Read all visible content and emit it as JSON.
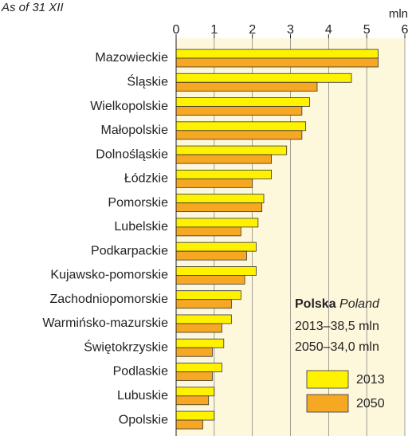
{
  "chart_data": {
    "type": "barh",
    "subtitle": "As of 31 XII",
    "x_label": "mln",
    "categories": [
      "Mazowieckie",
      "Śląskie",
      "Wielkopolskie",
      "Małopolskie",
      "Dolnośląskie",
      "Łódzkie",
      "Pomorskie",
      "Lubelskie",
      "Podkarpackie",
      "Kujawsko-pomorskie",
      "Zachodniopomorskie",
      "Warmińsko-mazurskie",
      "Świętokrzyskie",
      "Podlaskie",
      "Lubuskie",
      "Opolskie"
    ],
    "series": [
      {
        "name": "2013",
        "color": "#fff200",
        "values": [
          5.3,
          4.6,
          3.5,
          3.4,
          2.9,
          2.5,
          2.3,
          2.15,
          2.1,
          2.1,
          1.7,
          1.45,
          1.25,
          1.2,
          1.0,
          1.0
        ]
      },
      {
        "name": "2050",
        "color": "#f7a823",
        "values": [
          5.3,
          3.7,
          3.3,
          3.3,
          2.5,
          2.0,
          2.25,
          1.7,
          1.85,
          1.8,
          1.45,
          1.2,
          0.95,
          0.95,
          0.85,
          0.7
        ]
      }
    ],
    "xlim": [
      0,
      6
    ],
    "xticks": [
      0,
      1,
      2,
      3,
      4,
      5,
      6
    ],
    "grid": true,
    "legend_title": "Polska",
    "legend_title_translation": "Poland",
    "annotations": [
      "2013–38,5 mln",
      "2050–34,0 mln"
    ]
  }
}
